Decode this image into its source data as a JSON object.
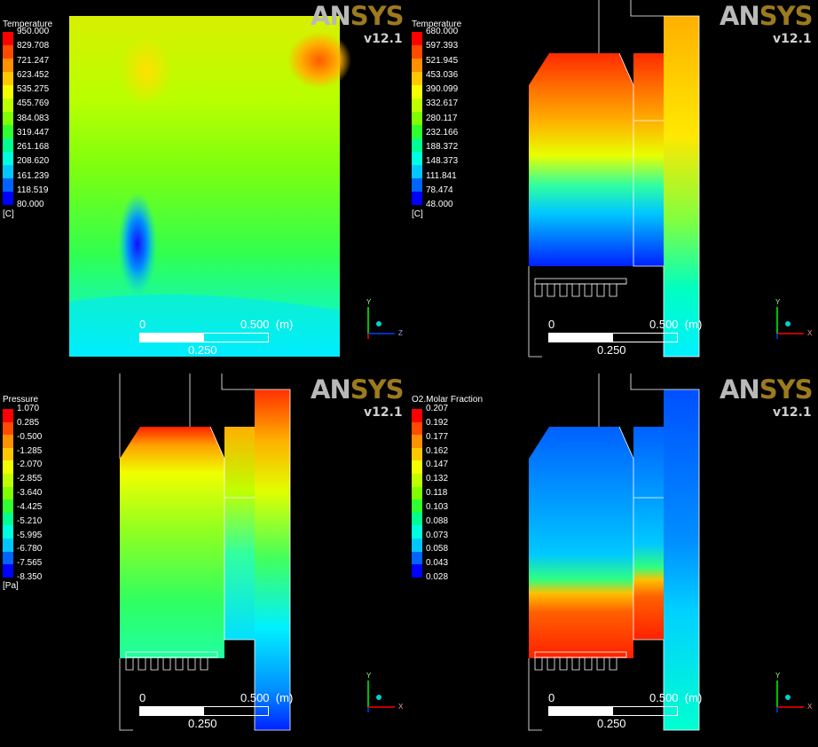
{
  "brand": {
    "ans": "AN",
    "sys": "SYS",
    "version": "v12.1"
  },
  "scale": {
    "zero": "0",
    "half": "0.500",
    "unit": "(m)",
    "quarter": "0.250"
  },
  "panels": [
    {
      "id": "tl",
      "legend": {
        "title": "Temperature",
        "unit": "[C]",
        "ticks": [
          "950.000",
          "829.708",
          "721.247",
          "623.452",
          "535.275",
          "455.769",
          "384.083",
          "319.447",
          "261.168",
          "208.620",
          "161.239",
          "118.519",
          "80.000"
        ]
      },
      "axes": {
        "up": "Y",
        "right": "Z"
      }
    },
    {
      "id": "tr",
      "legend": {
        "title": "Temperature",
        "unit": "[C]",
        "ticks": [
          "680.000",
          "597.393",
          "521.945",
          "453.036",
          "390.099",
          "332.617",
          "280.117",
          "232.166",
          "188.372",
          "148.373",
          "111.841",
          "78.474",
          "48.000"
        ]
      },
      "axes": {
        "up": "Y",
        "right": "X"
      }
    },
    {
      "id": "bl",
      "legend": {
        "title": "Pressure",
        "unit": "[Pa]",
        "ticks": [
          "1.070",
          "0.285",
          "-0.500",
          "-1.285",
          "-2.070",
          "-2.855",
          "-3.640",
          "-4.425",
          "-5.210",
          "-5.995",
          "-6.780",
          "-7.565",
          "-8.350"
        ]
      },
      "axes": {
        "up": "Y",
        "right": "X"
      }
    },
    {
      "id": "br",
      "legend": {
        "title": "O2.Molar Fraction",
        "unit": "",
        "ticks": [
          "0.207",
          "0.192",
          "0.177",
          "0.162",
          "0.147",
          "0.132",
          "0.118",
          "0.103",
          "0.088",
          "0.073",
          "0.058",
          "0.043",
          "0.028"
        ]
      },
      "axes": {
        "up": "Y",
        "right": "X"
      }
    }
  ],
  "colors": {
    "spectrum": [
      "#ff0000",
      "#ff4a00",
      "#ff9000",
      "#ffc800",
      "#f5ff00",
      "#c0ff00",
      "#7fff00",
      "#30ff30",
      "#00ff90",
      "#00ffe0",
      "#00c8ff",
      "#0064ff",
      "#0000ff"
    ]
  }
}
